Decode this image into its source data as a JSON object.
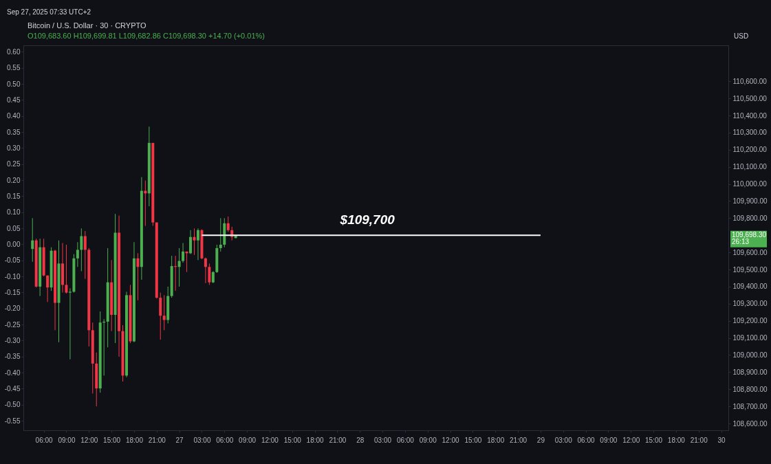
{
  "chart_data": {
    "type": "candlestick",
    "title": "Bitcoin / U.S. Dollar · 30 · CRYPTO",
    "subtitle": "O109,683.60 H109,699.81 L109,682.86 C109,698.30 +14.70 (+0.01%)",
    "ylabel": "USD",
    "x": [
      "2025-09-26T04:30",
      "2025-09-26T05:00",
      "2025-09-26T05:30",
      "2025-09-26T06:00",
      "2025-09-26T06:30",
      "2025-09-26T07:00",
      "2025-09-26T07:30",
      "2025-09-26T08:00",
      "2025-09-26T08:30",
      "2025-09-26T09:00",
      "2025-09-26T09:30",
      "2025-09-26T10:00",
      "2025-09-26T10:30",
      "2025-09-26T11:00",
      "2025-09-26T11:30",
      "2025-09-26T12:00",
      "2025-09-26T12:30",
      "2025-09-26T13:00",
      "2025-09-26T13:30",
      "2025-09-26T14:00",
      "2025-09-26T14:30",
      "2025-09-26T15:00",
      "2025-09-26T15:30",
      "2025-09-26T16:00",
      "2025-09-26T16:30",
      "2025-09-26T17:00",
      "2025-09-26T17:30",
      "2025-09-26T18:00",
      "2025-09-26T18:30",
      "2025-09-26T19:00",
      "2025-09-26T19:30",
      "2025-09-26T20:00",
      "2025-09-26T20:30",
      "2025-09-26T21:00",
      "2025-09-26T21:30",
      "2025-09-26T22:00",
      "2025-09-26T22:30",
      "2025-09-26T23:00",
      "2025-09-26T23:30",
      "2025-09-27T00:00",
      "2025-09-27T00:30",
      "2025-09-27T01:00",
      "2025-09-27T01:30",
      "2025-09-27T02:00",
      "2025-09-27T02:30",
      "2025-09-27T03:00",
      "2025-09-27T03:30",
      "2025-09-27T04:00",
      "2025-09-27T04:30",
      "2025-09-27T05:00",
      "2025-09-27T05:30",
      "2025-09-27T06:00",
      "2025-09-27T06:30",
      "2025-09-27T07:00",
      "2025-09-27T07:30"
    ],
    "ohlc": [
      [
        109620,
        109800,
        109545,
        109670
      ],
      [
        109670,
        109680,
        109395,
        109400
      ],
      [
        109400,
        109680,
        109345,
        109630
      ],
      [
        109630,
        109680,
        109460,
        109465
      ],
      [
        109465,
        109465,
        109310,
        109395
      ],
      [
        109395,
        109630,
        109375,
        109610
      ],
      [
        109610,
        109615,
        109145,
        109305
      ],
      [
        109305,
        109670,
        109075,
        109535
      ],
      [
        109535,
        109655,
        109365,
        109410
      ],
      [
        109410,
        109645,
        109360,
        109365
      ],
      [
        109365,
        109390,
        108975,
        109370
      ],
      [
        109370,
        109590,
        109365,
        109565
      ],
      [
        109565,
        109660,
        109515,
        109615
      ],
      [
        109615,
        109740,
        109490,
        109695
      ],
      [
        109695,
        109725,
        109445,
        109615
      ],
      [
        109615,
        109625,
        109050,
        109145
      ],
      [
        109145,
        109190,
        108775,
        108950
      ],
      [
        108950,
        109015,
        108700,
        108805
      ],
      [
        108805,
        109255,
        108780,
        109190
      ],
      [
        109190,
        109210,
        108880,
        109195
      ],
      [
        109195,
        109625,
        109045,
        109425
      ],
      [
        109425,
        109555,
        109140,
        109235
      ],
      [
        109235,
        109825,
        109070,
        109715
      ],
      [
        109715,
        109815,
        108990,
        109140
      ],
      [
        109140,
        109175,
        108845,
        108880
      ],
      [
        108880,
        109370,
        108870,
        109350
      ],
      [
        109350,
        109410,
        109070,
        109080
      ],
      [
        109080,
        109660,
        109075,
        109565
      ],
      [
        109565,
        109595,
        109320,
        109515
      ],
      [
        109515,
        110040,
        109440,
        109960
      ],
      [
        109960,
        110020,
        109755,
        109945
      ],
      [
        109945,
        110335,
        109870,
        110240
      ],
      [
        110240,
        110240,
        109755,
        109775
      ],
      [
        109775,
        109775,
        109330,
        109335
      ],
      [
        109335,
        109365,
        109090,
        109230
      ],
      [
        109230,
        109350,
        109145,
        109205
      ],
      [
        109205,
        109400,
        109185,
        109345
      ],
      [
        109345,
        109580,
        109335,
        109520
      ],
      [
        109520,
        109580,
        109375,
        109515
      ],
      [
        109515,
        109625,
        109400,
        109550
      ],
      [
        109550,
        109655,
        109540,
        109605
      ],
      [
        109605,
        109605,
        109485,
        109595
      ],
      [
        109595,
        109730,
        109590,
        109690
      ],
      [
        109690,
        109740,
        109585,
        109670
      ],
      [
        109670,
        109740,
        109555,
        109730
      ],
      [
        109730,
        109735,
        109560,
        109565
      ],
      [
        109565,
        109570,
        109420,
        109515
      ],
      [
        109515,
        109535,
        109410,
        109425
      ],
      [
        109425,
        109490,
        109420,
        109485
      ],
      [
        109485,
        109645,
        109480,
        109625
      ],
      [
        109625,
        109800,
        109605,
        109645
      ],
      [
        109645,
        109800,
        109630,
        109770
      ],
      [
        109770,
        109810,
        109720,
        109730
      ],
      [
        109730,
        109750,
        109670,
        109690
      ],
      [
        109683.6,
        109699.81,
        109682.86,
        109698.3
      ]
    ],
    "colors": [
      "#4caf50",
      "#f23645",
      "#4caf50",
      "#f23645",
      "#f23645",
      "#4caf50",
      "#f23645",
      "#4caf50",
      "#f23645",
      "#f23645",
      "#4caf50",
      "#4caf50",
      "#4caf50",
      "#4caf50",
      "#f23645",
      "#f23645",
      "#f23645",
      "#f23645",
      "#4caf50",
      "#4caf50",
      "#4caf50",
      "#f23645",
      "#4caf50",
      "#f23645",
      "#f23645",
      "#4caf50",
      "#f23645",
      "#4caf50",
      "#f23645",
      "#4caf50",
      "#f23645",
      "#4caf50",
      "#f23645",
      "#f23645",
      "#f23645",
      "#f23645",
      "#4caf50",
      "#4caf50",
      "#f23645",
      "#4caf50",
      "#4caf50",
      "#f23645",
      "#4caf50",
      "#f23645",
      "#4caf50",
      "#f23645",
      "#f23645",
      "#f23645",
      "#4caf50",
      "#4caf50",
      "#4caf50",
      "#4caf50",
      "#f23645",
      "#f23645",
      "#4caf50"
    ],
    "series": [
      {
        "type": "line",
        "color": "#ffffff",
        "x": [
          "2025-09-27T03:00",
          "2025-09-29T00:00"
        ],
        "values": [
          109700,
          109700
        ]
      }
    ],
    "xlim": [
      "2025-09-26T03:45",
      "2025-09-30T00:30"
    ],
    "xticks": [
      {
        "value": "2025-09-26T06:00",
        "label": "06:00"
      },
      {
        "value": "2025-09-26T09:00",
        "label": "09:00"
      },
      {
        "value": "2025-09-26T12:00",
        "label": "12:00"
      },
      {
        "value": "2025-09-26T15:00",
        "label": "15:00"
      },
      {
        "value": "2025-09-26T18:00",
        "label": "18:00"
      },
      {
        "value": "2025-09-26T21:00",
        "label": "21:00"
      },
      {
        "value": "2025-09-27T00:00",
        "label": "27"
      },
      {
        "value": "2025-09-27T03:00",
        "label": "03:00"
      },
      {
        "value": "2025-09-27T06:00",
        "label": "06:00"
      },
      {
        "value": "2025-09-27T09:00",
        "label": "09:00"
      },
      {
        "value": "2025-09-27T12:00",
        "label": "12:00"
      },
      {
        "value": "2025-09-27T15:00",
        "label": "15:00"
      },
      {
        "value": "2025-09-27T18:00",
        "label": "18:00"
      },
      {
        "value": "2025-09-27T21:00",
        "label": "21:00"
      },
      {
        "value": "2025-09-28T00:00",
        "label": "28"
      },
      {
        "value": "2025-09-28T03:00",
        "label": "03:00"
      },
      {
        "value": "2025-09-28T06:00",
        "label": "06:00"
      },
      {
        "value": "2025-09-28T09:00",
        "label": "09:00"
      },
      {
        "value": "2025-09-28T12:00",
        "label": "12:00"
      },
      {
        "value": "2025-09-28T15:00",
        "label": "15:00"
      },
      {
        "value": "2025-09-28T18:00",
        "label": "18:00"
      },
      {
        "value": "2025-09-28T21:00",
        "label": "21:00"
      },
      {
        "value": "2025-09-29T00:00",
        "label": "29"
      },
      {
        "value": "2025-09-29T03:00",
        "label": "03:00"
      },
      {
        "value": "2025-09-29T06:00",
        "label": "06:00"
      },
      {
        "value": "2025-09-29T09:00",
        "label": "09:00"
      },
      {
        "value": "2025-09-29T12:00",
        "label": "12:00"
      },
      {
        "value": "2025-09-29T15:00",
        "label": "15:00"
      },
      {
        "value": "2025-09-29T18:00",
        "label": "18:00"
      },
      {
        "value": "2025-09-29T21:00",
        "label": "21:00"
      },
      {
        "value": "2025-09-30T00:00",
        "label": "30"
      }
    ],
    "ylim": [
      108560,
      110810
    ],
    "yticks": [
      {
        "value": 108600,
        "label": "108,600.00"
      },
      {
        "value": 108700,
        "label": "108,700.00"
      },
      {
        "value": 108800,
        "label": "108,800.00"
      },
      {
        "value": 108900,
        "label": "108,900.00"
      },
      {
        "value": 109000,
        "label": "109,000.00"
      },
      {
        "value": 109100,
        "label": "109,100.00"
      },
      {
        "value": 109200,
        "label": "109,200.00"
      },
      {
        "value": 109300,
        "label": "109,300.00"
      },
      {
        "value": 109400,
        "label": "109,400.00"
      },
      {
        "value": 109500,
        "label": "109,500.00"
      },
      {
        "value": 109600,
        "label": "109,600.00"
      },
      {
        "value": 109800,
        "label": "109,800.00"
      },
      {
        "value": 109900,
        "label": "109,900.00"
      },
      {
        "value": 110000,
        "label": "110,000.00"
      },
      {
        "value": 110100,
        "label": "110,100.00"
      },
      {
        "value": 110200,
        "label": "110,200.00"
      },
      {
        "value": 110300,
        "label": "110,300.00"
      },
      {
        "value": 110400,
        "label": "110,400.00"
      },
      {
        "value": 110500,
        "label": "110,500.00"
      },
      {
        "value": 110600,
        "label": "110,600.00"
      }
    ],
    "y2lim": [
      -0.58,
      0.62
    ],
    "y2ticks": [
      {
        "value": 0.6,
        "label": "0.60"
      },
      {
        "value": 0.55,
        "label": "0.55"
      },
      {
        "value": 0.5,
        "label": "0.50"
      },
      {
        "value": 0.45,
        "label": "0.45"
      },
      {
        "value": 0.4,
        "label": "0.40"
      },
      {
        "value": 0.35,
        "label": "0.35"
      },
      {
        "value": 0.3,
        "label": "0.30"
      },
      {
        "value": 0.25,
        "label": "0.25"
      },
      {
        "value": 0.2,
        "label": "0.20"
      },
      {
        "value": 0.15,
        "label": "0.15"
      },
      {
        "value": 0.1,
        "label": "0.10"
      },
      {
        "value": 0.05,
        "label": "0.05"
      },
      {
        "value": 0,
        "label": "0.00"
      },
      {
        "value": -0.05,
        "label": "-0.05"
      },
      {
        "value": -0.1,
        "label": "-0.10"
      },
      {
        "value": -0.15,
        "label": "-0.15"
      },
      {
        "value": -0.2,
        "label": "-0.20"
      },
      {
        "value": -0.25,
        "label": "-0.25"
      },
      {
        "value": -0.3,
        "label": "-0.30"
      },
      {
        "value": -0.35,
        "label": "-0.35"
      },
      {
        "value": -0.4,
        "label": "-0.40"
      },
      {
        "value": -0.45,
        "label": "-0.45"
      },
      {
        "value": -0.5,
        "label": "-0.50"
      },
      {
        "value": -0.55,
        "label": "-0.55"
      }
    ],
    "annotations": [
      "Sep 27, 2025 07:33 UTC+2",
      {
        "text": "$109,700",
        "x": "2025-09-28T01:00",
        "y": 109700
      },
      "109,698.30",
      "26:13"
    ],
    "grid": false
  }
}
